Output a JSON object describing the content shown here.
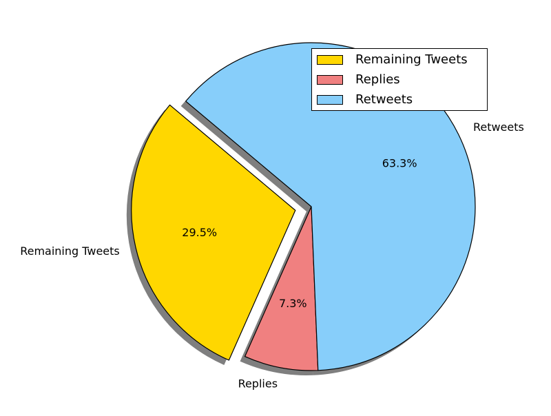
{
  "chart_data": {
    "type": "pie",
    "title": "",
    "slices": [
      {
        "label": "Remaining Tweets",
        "percent": 29.5,
        "pct_label": "29.5%",
        "color": "#FFD700",
        "exploded": true
      },
      {
        "label": "Replies",
        "percent": 7.3,
        "pct_label": "7.3%",
        "color": "#F08080",
        "exploded": false
      },
      {
        "label": "Retweets",
        "percent": 63.3,
        "pct_label": "63.3%",
        "color": "#87CEFA",
        "exploded": false
      }
    ],
    "shadow": true,
    "start_angle_deg": 140,
    "legend": {
      "position": "upper-right",
      "entries": [
        "Remaining Tweets",
        "Replies",
        "Retweets"
      ]
    }
  }
}
